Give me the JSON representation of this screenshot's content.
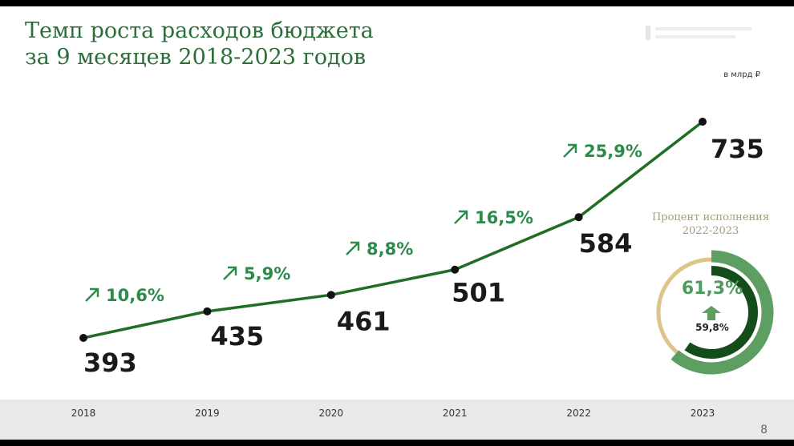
{
  "slide": {
    "title_line1": "Темп роста расходов бюджета",
    "title_line2": "за 9 месяцев 2018-2023 годов",
    "unit": "в млрд ₽",
    "page_number": "8"
  },
  "chart_data": {
    "type": "line",
    "categories": [
      "2018",
      "2019",
      "2020",
      "2021",
      "2022",
      "2023"
    ],
    "values": [
      393,
      435,
      461,
      501,
      584,
      735
    ],
    "growth": [
      "10,6%",
      "5,9%",
      "8,8%",
      "16,5%",
      "25,9%"
    ],
    "value_labels": [
      "393",
      "435",
      "461",
      "501",
      "584",
      "735"
    ],
    "ylabel": "в млрд ₽",
    "ylim": [
      300,
      800
    ],
    "grid": false,
    "legend": "none",
    "line_color": "#1f6e23"
  },
  "donut": {
    "title_line1": "Процент исполнения",
    "title_line2": "2022-2023",
    "current_value": "61,3%",
    "current_fraction": 0.613,
    "previous_value": "59,8%",
    "previous_fraction": 0.598,
    "colors": {
      "track": "#ddc48a",
      "current_arc": "#5d9e63",
      "previous_arc": "#134d1a"
    }
  },
  "colors": {
    "title": "#2c6e3a",
    "growth": "#2c8a4a",
    "axis_band": "#e9e9e9"
  }
}
